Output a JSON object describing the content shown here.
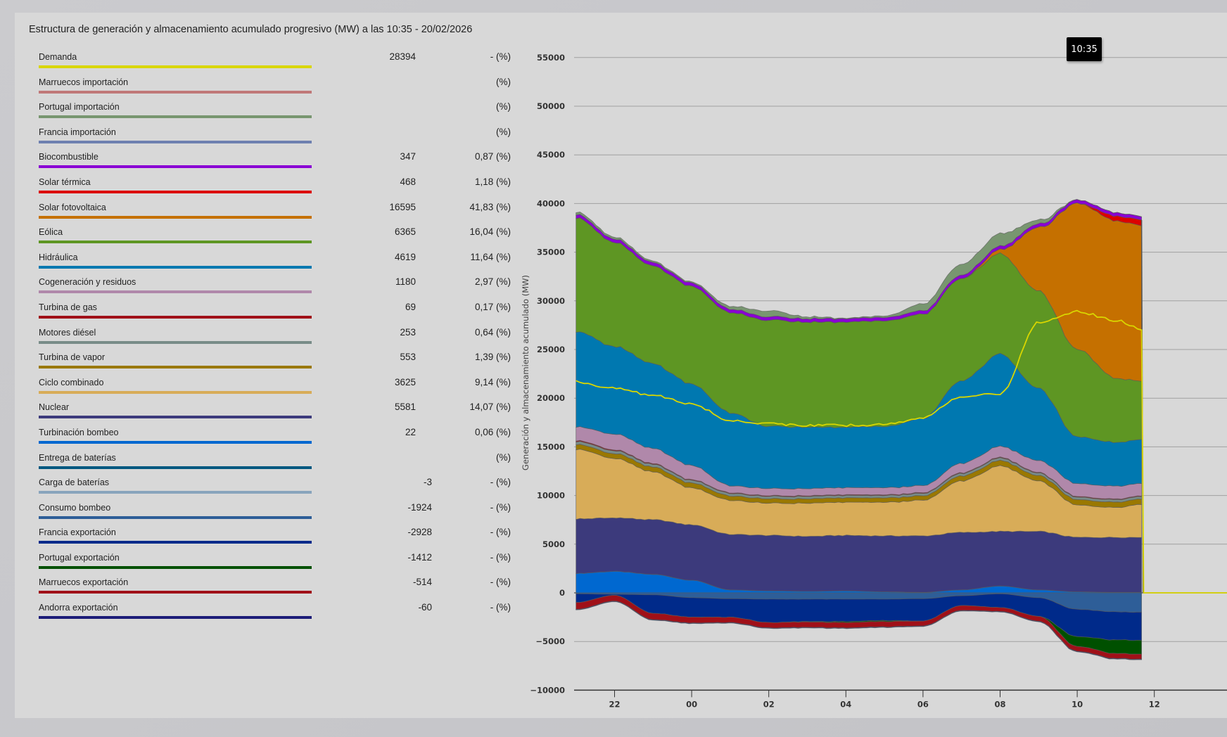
{
  "title": "Estructura de generación y almacenamiento acumulado progresivo (MW) a las 10:35 - 20/02/2026",
  "tooltip": "10:35",
  "legend": [
    {
      "key": "demanda",
      "label": "Demanda",
      "value": "28394",
      "pct": "- (%)",
      "color": "#d9d600"
    },
    {
      "key": "marruecos_imp",
      "label": "Marruecos importación",
      "value": "",
      "pct": "(%)",
      "color": "#c07878"
    },
    {
      "key": "portugal_imp",
      "label": "Portugal importación",
      "value": "",
      "pct": "(%)",
      "color": "#789670"
    },
    {
      "key": "francia_imp",
      "label": "Francia importación",
      "value": "",
      "pct": "(%)",
      "color": "#6e80b0"
    },
    {
      "key": "biocombustible",
      "label": "Biocombustible",
      "value": "347",
      "pct": "0,87 (%)",
      "color": "#8a00d4"
    },
    {
      "key": "solar_termica",
      "label": "Solar térmica",
      "value": "468",
      "pct": "1,18 (%)",
      "color": "#dc0000"
    },
    {
      "key": "solar_fv",
      "label": "Solar fotovoltaica",
      "value": "16595",
      "pct": "41,83 (%)",
      "color": "#c57000"
    },
    {
      "key": "eolica",
      "label": "Eólica",
      "value": "6365",
      "pct": "16,04 (%)",
      "color": "#5e9623"
    },
    {
      "key": "hidraulica",
      "label": "Hidráulica",
      "value": "4619",
      "pct": "11,64 (%)",
      "color": "#0078b0"
    },
    {
      "key": "cogeneracion",
      "label": "Cogeneración y residuos",
      "value": "1180",
      "pct": "2,97 (%)",
      "color": "#b088aa"
    },
    {
      "key": "turbina_gas",
      "label": "Turbina de gas",
      "value": "69",
      "pct": "0,17 (%)",
      "color": "#a01018"
    },
    {
      "key": "motores_diesel",
      "label": "Motores diésel",
      "value": "253",
      "pct": "0,64 (%)",
      "color": "#788c88"
    },
    {
      "key": "turbina_vapor",
      "label": "Turbina de vapor",
      "value": "553",
      "pct": "1,39 (%)",
      "color": "#9a7800"
    },
    {
      "key": "ciclo_combinado",
      "label": "Ciclo combinado",
      "value": "3625",
      "pct": "9,14 (%)",
      "color": "#d8ac58"
    },
    {
      "key": "nuclear",
      "label": "Nuclear",
      "value": "5581",
      "pct": "14,07 (%)",
      "color": "#3c3a7c"
    },
    {
      "key": "turbinacion_bombeo",
      "label": "Turbinación bombeo",
      "value": "22",
      "pct": "0,06 (%)",
      "color": "#0068d0"
    },
    {
      "key": "entrega_baterias",
      "label": "Entrega de baterías",
      "value": "",
      "pct": "(%)",
      "color": "#005880"
    },
    {
      "key": "carga_baterias",
      "label": "Carga de baterías",
      "value": "-3",
      "pct": "- (%)",
      "color": "#88a4bc"
    },
    {
      "key": "consumo_bombeo",
      "label": "Consumo bombeo",
      "value": "-1924",
      "pct": "- (%)",
      "color": "#2e5e98"
    },
    {
      "key": "francia_exp",
      "label": "Francia exportación",
      "value": "-2928",
      "pct": "- (%)",
      "color": "#002a8a"
    },
    {
      "key": "portugal_exp",
      "label": "Portugal exportación",
      "value": "-1412",
      "pct": "- (%)",
      "color": "#005000"
    },
    {
      "key": "marruecos_exp",
      "label": "Marruecos exportación",
      "value": "-514",
      "pct": "- (%)",
      "color": "#a01018"
    },
    {
      "key": "andorra_exp",
      "label": "Andorra exportación",
      "value": "-60",
      "pct": "- (%)",
      "color": "#1c1c78"
    }
  ],
  "chart_data": {
    "type": "area",
    "stacked": true,
    "title": "Estructura de generación y almacenamiento acumulado progresivo (MW) a las 10:35 - 20/02/2026",
    "xlabel": "",
    "ylabel": "Generación y almacenamiento acumulado (MW)",
    "ylim": [
      -10000,
      55000
    ],
    "yticks": [
      "55000",
      "50000",
      "45000",
      "40000",
      "35000",
      "30000",
      "25000",
      "20000",
      "15000",
      "10000",
      "5000",
      "0",
      "−5000",
      "−10000"
    ],
    "ytick_values": [
      55000,
      50000,
      45000,
      40000,
      35000,
      30000,
      25000,
      20000,
      15000,
      10000,
      5000,
      0,
      -5000,
      -10000
    ],
    "xlim_hours": [
      21,
      37.9
    ],
    "xticks": [
      "22",
      "00",
      "02",
      "04",
      "06",
      "08",
      "10",
      "12"
    ],
    "xtick_hours": [
      22,
      24,
      26,
      28,
      30,
      32,
      34,
      36
    ],
    "grid": true,
    "x_hours": [
      21,
      22,
      23,
      24,
      25,
      26,
      27,
      28,
      29,
      30,
      31,
      32,
      33,
      34,
      35,
      35.67
    ],
    "positive_series": [
      {
        "key": "turbinacion_bombeo",
        "name": "Turbinación bombeo",
        "values": [
          2000,
          2200,
          1900,
          1300,
          300,
          200,
          150,
          200,
          100,
          50,
          300,
          700,
          300,
          100,
          50,
          50
        ]
      },
      {
        "key": "nuclear",
        "name": "Nuclear",
        "values": [
          5600,
          5500,
          5600,
          5700,
          5700,
          5700,
          5650,
          5700,
          5750,
          5800,
          5900,
          5600,
          6000,
          5600,
          5650,
          5650
        ]
      },
      {
        "key": "ciclo_combinado",
        "name": "Ciclo combinado",
        "values": [
          7200,
          6100,
          4900,
          3800,
          3500,
          3300,
          3400,
          3400,
          3450,
          3650,
          5300,
          6700,
          5200,
          3300,
          3100,
          3400
        ]
      },
      {
        "key": "turbina_vapor",
        "name": "Turbina de vapor",
        "values": [
          500,
          500,
          500,
          500,
          450,
          450,
          450,
          450,
          450,
          450,
          500,
          550,
          550,
          550,
          550,
          553
        ]
      },
      {
        "key": "motores_diesel",
        "name": "Motores diésel",
        "values": [
          300,
          300,
          280,
          270,
          260,
          250,
          250,
          250,
          250,
          250,
          260,
          260,
          260,
          255,
          253,
          253
        ]
      },
      {
        "key": "turbina_gas",
        "name": "Turbina de gas",
        "values": [
          100,
          90,
          80,
          70,
          70,
          70,
          70,
          70,
          70,
          70,
          70,
          70,
          70,
          70,
          69,
          69
        ]
      },
      {
        "key": "cogeneracion",
        "name": "Cogeneración y residuos",
        "values": [
          1400,
          1610,
          1540,
          1460,
          720,
          730,
          730,
          730,
          730,
          730,
          970,
          1120,
          1220,
          1325,
          1328,
          1278
        ]
      },
      {
        "key": "hidraulica",
        "name": "Hidráulica",
        "values": [
          9800,
          9000,
          8700,
          8400,
          7500,
          6400,
          6300,
          6200,
          6300,
          6900,
          8500,
          9500,
          7400,
          4800,
          4500,
          4500
        ]
      },
      {
        "key": "eolica",
        "name": "Eólica",
        "values": [
          11700,
          10700,
          10000,
          10000,
          10300,
          10900,
          10800,
          10800,
          10900,
          10700,
          10500,
          10300,
          10000,
          9000,
          6600,
          6000
        ]
      },
      {
        "key": "solar_fv",
        "name": "Solar fotovoltaica",
        "values": [
          0,
          0,
          0,
          0,
          0,
          0,
          0,
          0,
          0,
          0,
          0,
          400,
          6500,
          15000,
          16200,
          16000
        ]
      },
      {
        "key": "solar_termica",
        "name": "Solar térmica",
        "values": [
          0,
          0,
          0,
          0,
          0,
          0,
          0,
          0,
          0,
          0,
          0,
          0,
          0,
          0,
          500,
          600
        ]
      },
      {
        "key": "biocombustible",
        "name": "Biocombustible",
        "values": [
          350,
          350,
          350,
          350,
          350,
          350,
          350,
          350,
          350,
          350,
          350,
          350,
          350,
          347,
          347,
          347
        ]
      },
      {
        "key": "portugal_imp",
        "name": "Portugal importación",
        "values": [
          250,
          200,
          150,
          100,
          300,
          600,
          200,
          50,
          150,
          700,
          1100,
          1300,
          400,
          0,
          0,
          0
        ]
      }
    ],
    "negative_series": [
      {
        "key": "consumo_bombeo",
        "name": "Consumo bombeo",
        "values": [
          -100,
          -150,
          -200,
          -500,
          -600,
          -650,
          -650,
          -650,
          -650,
          -600,
          -300,
          -100,
          -500,
          -1700,
          -1950,
          -2000
        ]
      },
      {
        "key": "francia_exp",
        "name": "Francia exportación",
        "values": [
          -900,
          -100,
          -1900,
          -2000,
          -1900,
          -2400,
          -2300,
          -2300,
          -2200,
          -2300,
          -1000,
          -1400,
          -1900,
          -2800,
          -2900,
          -2900
        ]
      },
      {
        "key": "portugal_exp",
        "name": "Portugal exportación",
        "values": [
          0,
          0,
          0,
          0,
          0,
          0,
          -50,
          -100,
          -100,
          0,
          0,
          0,
          0,
          -1000,
          -1400,
          -1412
        ]
      },
      {
        "key": "marruecos_exp",
        "name": "Marruecos exportación",
        "values": [
          -700,
          -600,
          -650,
          -600,
          -550,
          -550,
          -550,
          -550,
          -550,
          -500,
          -500,
          -400,
          -500,
          -500,
          -514,
          -514
        ]
      },
      {
        "key": "andorra_exp",
        "name": "Andorra exportación",
        "values": [
          -60,
          -60,
          -60,
          -60,
          -60,
          -60,
          -60,
          -60,
          -60,
          -60,
          -60,
          -60,
          -60,
          -60,
          -60,
          -60
        ]
      }
    ],
    "demand_line": {
      "key": "demanda",
      "name": "Demanda",
      "values": [
        21700,
        21000,
        20300,
        19400,
        17700,
        17400,
        17200,
        17200,
        17300,
        18000,
        20200,
        20400,
        27800,
        28900,
        28000,
        27100
      ]
    }
  }
}
